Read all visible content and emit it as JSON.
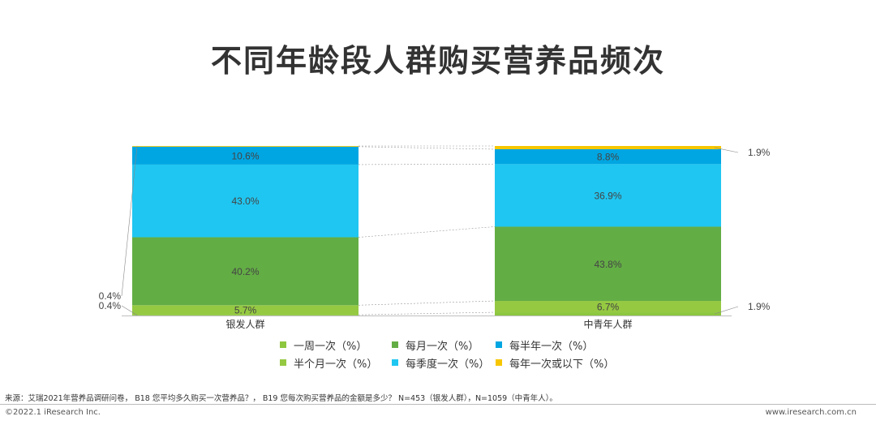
{
  "title": "不同年龄段人群购买营养品频次",
  "chart_data": {
    "type": "stacked_bar",
    "categories": [
      "银发人群",
      "中青年人群"
    ],
    "unit": "%",
    "series": [
      {
        "name": "一周一次（%）",
        "color": "#8DC63F",
        "values": [
          0.4,
          1.9
        ],
        "labels": [
          "0.4%",
          "1.9%"
        ]
      },
      {
        "name": "半个月一次（%）",
        "color": "#95C942",
        "values": [
          5.7,
          6.7
        ],
        "labels": [
          "5.7%",
          "6.7%"
        ]
      },
      {
        "name": "每月一次（%）",
        "color": "#63AD45",
        "values": [
          40.2,
          43.8
        ],
        "labels": [
          "40.2%",
          "43.8%"
        ]
      },
      {
        "name": "每季度一次（%）",
        "color": "#1FC6F1",
        "values": [
          43.0,
          36.9
        ],
        "labels": [
          "43.0%",
          "36.9%"
        ]
      },
      {
        "name": "每半年一次（%）",
        "color": "#00A6E2",
        "values": [
          10.6,
          8.8
        ],
        "labels": [
          "10.6%",
          "8.8%"
        ]
      },
      {
        "name": "每年一次或以下（%）",
        "color": "#F7C600",
        "values": [
          0.4,
          1.9
        ],
        "labels": [
          "0.4%",
          "1.9%"
        ]
      }
    ],
    "legend_order": [
      0,
      2,
      4,
      1,
      3,
      5
    ]
  },
  "source": "来源：艾瑞2021年营养品调研问卷， B18 您平均多久购买一次营养品？， B19 您每次购买营养品的金额是多少？ N=453（银发人群），N=1059（中青年人）。",
  "copyright": "©2022.1 iResearch Inc.",
  "website": "www.iresearch.com.cn"
}
